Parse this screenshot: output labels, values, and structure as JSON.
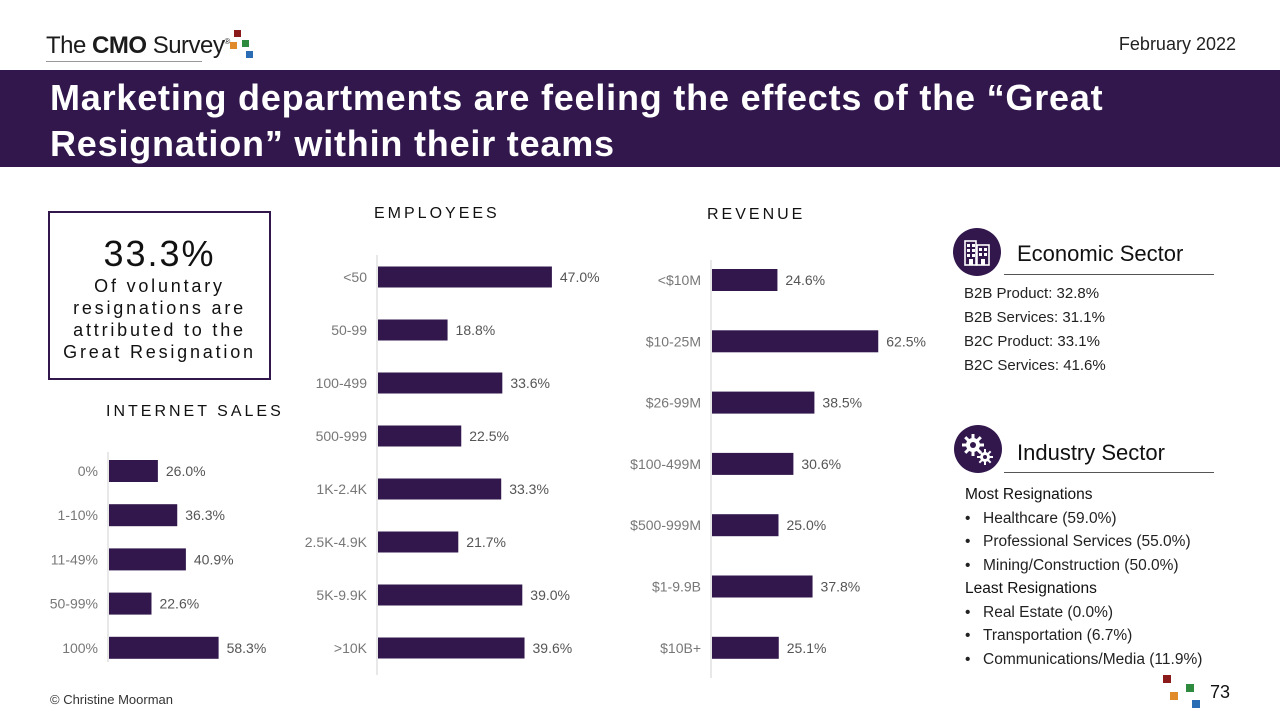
{
  "header": {
    "logo": {
      "prefix": "The ",
      "bold": "CMO",
      "suffix": " Survey",
      "reg": "®"
    },
    "date": "February 2022",
    "title": "Marketing departments are feeling the effects of the “Great Resignation” within their teams"
  },
  "kpi": {
    "value": "33.3%",
    "description": "Of voluntary resignations are attributed to the Great Resignation"
  },
  "colors": {
    "bar": "#32174d",
    "banner": "#32174d",
    "logo_squares": [
      "#8b1a1a",
      "#e08a2a",
      "#2e8b3e",
      "#2a6db5"
    ]
  },
  "chart_data": [
    {
      "type": "bar",
      "orientation": "horizontal",
      "title": "INTERNET SALES",
      "categories": [
        "0%",
        "1-10%",
        "11-49%",
        "50-99%",
        "100%"
      ],
      "values": [
        26.0,
        36.3,
        40.9,
        22.6,
        58.3
      ],
      "labels": [
        "26.0%",
        "36.3%",
        "40.9%",
        "22.6%",
        "58.3%"
      ],
      "xlim": [
        0,
        100
      ],
      "grid": false
    },
    {
      "type": "bar",
      "orientation": "horizontal",
      "title": "EMPLOYEES",
      "categories": [
        "<50",
        "50-99",
        "100-499",
        "500-999",
        "1K-2.4K",
        "2.5K-4.9K",
        "5K-9.9K",
        ">10K"
      ],
      "values": [
        47.0,
        18.8,
        33.6,
        22.5,
        33.3,
        21.7,
        39.0,
        39.6
      ],
      "labels": [
        "47.0%",
        "18.8%",
        "33.6%",
        "22.5%",
        "33.3%",
        "21.7%",
        "39.0%",
        "39.6%"
      ],
      "xlim": [
        0,
        100
      ],
      "grid": false
    },
    {
      "type": "bar",
      "orientation": "horizontal",
      "title": "REVENUE",
      "categories": [
        "<$10M",
        "$10-25M",
        "$26-99M",
        "$100-499M",
        "$500-999M",
        "$1-9.9B",
        "$10B+"
      ],
      "values": [
        24.6,
        62.5,
        38.5,
        30.6,
        25.0,
        37.8,
        25.1
      ],
      "labels": [
        "24.6%",
        "62.5%",
        "38.5%",
        "30.6%",
        "25.0%",
        "37.8%",
        "25.1%"
      ],
      "xlim": [
        0,
        100
      ],
      "grid": false
    }
  ],
  "economic": {
    "title": "Economic Sector",
    "icon": "building-icon",
    "items": [
      "B2B Product: 32.8%",
      "B2B Services:  31.1%",
      "B2C Product:  33.1%",
      "B2C Services: 41.6%"
    ]
  },
  "industry": {
    "title": "Industry Sector",
    "icon": "gears-icon",
    "most_heading": "Most Resignations",
    "most": [
      "Healthcare (59.0%)",
      "Professional Services (55.0%)",
      "Mining/Construction (50.0%)"
    ],
    "least_heading": "Least Resignations",
    "least": [
      "Real Estate (0.0%)",
      "Transportation (6.7%)",
      "Communications/Media (11.9%)"
    ],
    "bullet": "•"
  },
  "footer": {
    "copyright": "© Christine Moorman",
    "page": "73"
  }
}
